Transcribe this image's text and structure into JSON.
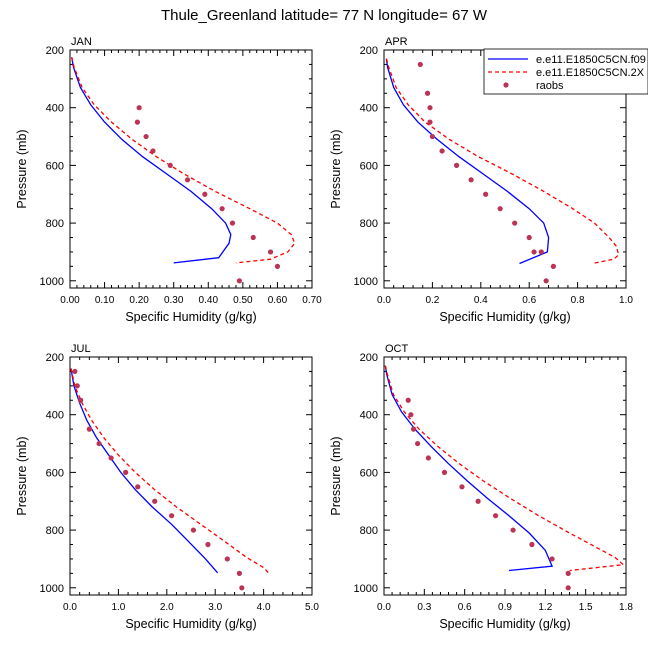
{
  "figure": {
    "title": "Thule_Greenland  latitude= 77 N longitude= 67 W"
  },
  "chart_data": [
    {
      "type": "line",
      "panel_label": "JAN",
      "xlabel": "Specific Humidity (g/kg)",
      "ylabel": "Pressure (mb)",
      "xlim": [
        0,
        0.7
      ],
      "xticks": [
        0,
        0.1,
        0.2,
        0.3,
        0.4,
        0.5,
        0.6,
        0.7
      ],
      "xtick_labels": [
        "0.00",
        "0.10",
        "0.20",
        "0.30",
        "0.40",
        "0.50",
        "0.60",
        "0.70"
      ],
      "ylim": [
        200,
        1025
      ],
      "yticks": [
        200,
        400,
        600,
        800,
        1000
      ],
      "yreversed": true,
      "legend": null,
      "series": [
        {
          "name": "e.e11.E1850C5CN.f09",
          "style": "solid",
          "color": "#0000ff",
          "x": [
            0.005,
            0.01,
            0.03,
            0.06,
            0.1,
            0.15,
            0.21,
            0.28,
            0.35,
            0.41,
            0.45,
            0.465,
            0.46,
            0.43,
            0.3
          ],
          "y": [
            225,
            260,
            330,
            390,
            450,
            510,
            570,
            630,
            690,
            750,
            800,
            840,
            870,
            920,
            938
          ]
        },
        {
          "name": "e.e11.E1850C5CN.2X",
          "style": "dashed",
          "color": "#ff0000",
          "x": [
            0.005,
            0.012,
            0.035,
            0.07,
            0.12,
            0.18,
            0.25,
            0.33,
            0.42,
            0.52,
            0.6,
            0.64,
            0.65,
            0.63,
            0.58,
            0.48
          ],
          "y": [
            225,
            260,
            330,
            390,
            450,
            510,
            570,
            630,
            690,
            750,
            800,
            840,
            870,
            900,
            925,
            938
          ]
        },
        {
          "name": "raobs",
          "style": "markers",
          "color": "#bb3355",
          "x": [
            0.2,
            0.195,
            0.22,
            0.24,
            0.29,
            0.34,
            0.39,
            0.44,
            0.47,
            0.53,
            0.58,
            0.6,
            0.49
          ],
          "y": [
            400,
            450,
            500,
            550,
            600,
            650,
            700,
            750,
            800,
            850,
            900,
            950,
            1000
          ]
        }
      ]
    },
    {
      "type": "line",
      "panel_label": "APR",
      "xlabel": "Specific Humidity (g/kg)",
      "ylabel": "Pressure (mb)",
      "xlim": [
        0,
        1.0
      ],
      "xticks": [
        0,
        0.2,
        0.4,
        0.6,
        0.8,
        1.0
      ],
      "xtick_labels": [
        "0.0",
        "0.2",
        "0.4",
        "0.6",
        "0.8",
        "1.0"
      ],
      "ylim": [
        200,
        1025
      ],
      "yticks": [
        200,
        400,
        600,
        800,
        1000
      ],
      "yreversed": true,
      "legend": "top-right",
      "series": [
        {
          "name": "e.e11.E1850C5CN.f09",
          "style": "solid",
          "color": "#0000ff",
          "x": [
            0.01,
            0.015,
            0.04,
            0.08,
            0.14,
            0.22,
            0.31,
            0.41,
            0.51,
            0.6,
            0.66,
            0.68,
            0.675,
            0.56
          ],
          "y": [
            230,
            260,
            330,
            390,
            450,
            510,
            570,
            630,
            690,
            750,
            800,
            850,
            900,
            940
          ]
        },
        {
          "name": "e.e11.E1850C5CN.2X",
          "style": "dashed",
          "color": "#ff0000",
          "x": [
            0.01,
            0.02,
            0.05,
            0.1,
            0.17,
            0.27,
            0.39,
            0.53,
            0.66,
            0.78,
            0.87,
            0.93,
            0.96,
            0.97,
            0.95,
            0.86
          ],
          "y": [
            230,
            260,
            330,
            390,
            450,
            510,
            570,
            630,
            690,
            750,
            800,
            850,
            880,
            910,
            925,
            940
          ]
        },
        {
          "name": "raobs",
          "style": "markers",
          "color": "#bb3355",
          "x": [
            0.15,
            0.18,
            0.19,
            0.19,
            0.2,
            0.24,
            0.3,
            0.36,
            0.42,
            0.48,
            0.54,
            0.6,
            0.62,
            0.65,
            0.7,
            0.67
          ],
          "y": [
            250,
            350,
            400,
            450,
            500,
            550,
            600,
            650,
            700,
            750,
            800,
            850,
            900,
            900,
            950,
            1000
          ]
        }
      ]
    },
    {
      "type": "line",
      "panel_label": "JUL",
      "xlabel": "Specific Humidity (g/kg)",
      "ylabel": "Pressure (mb)",
      "xlim": [
        0,
        5.0
      ],
      "xticks": [
        0,
        1,
        2,
        3,
        4,
        5
      ],
      "xtick_labels": [
        "0.0",
        "1.0",
        "2.0",
        "3.0",
        "4.0",
        "5.0"
      ],
      "ylim": [
        200,
        1025
      ],
      "yticks": [
        200,
        400,
        600,
        800,
        1000
      ],
      "yreversed": true,
      "legend": null,
      "series": [
        {
          "name": "e.e11.E1850C5CN.f09",
          "style": "solid",
          "color": "#0000ff",
          "x": [
            0.02,
            0.08,
            0.2,
            0.35,
            0.55,
            0.8,
            1.05,
            1.35,
            1.7,
            2.1,
            2.45,
            2.8,
            3.05
          ],
          "y": [
            240,
            300,
            360,
            420,
            480,
            540,
            600,
            660,
            720,
            780,
            840,
            900,
            948
          ]
        },
        {
          "name": "e.e11.E1850C5CN.2X",
          "style": "dashed",
          "color": "#ff0000",
          "x": [
            0.02,
            0.1,
            0.25,
            0.45,
            0.7,
            1.0,
            1.35,
            1.75,
            2.2,
            2.7,
            3.2,
            3.65,
            4.0,
            4.1
          ],
          "y": [
            240,
            300,
            360,
            420,
            480,
            540,
            600,
            660,
            720,
            780,
            840,
            895,
            930,
            948
          ]
        },
        {
          "name": "raobs",
          "style": "markers",
          "color": "#bb3355",
          "x": [
            0.1,
            0.15,
            0.22,
            0.4,
            0.6,
            0.85,
            1.15,
            1.4,
            1.75,
            2.1,
            2.55,
            2.85,
            3.25,
            3.5,
            3.55
          ],
          "y": [
            250,
            300,
            350,
            450,
            500,
            550,
            600,
            650,
            700,
            750,
            800,
            850,
            900,
            950,
            1000
          ]
        }
      ]
    },
    {
      "type": "line",
      "panel_label": "OCT",
      "xlabel": "Specific Humidity (g/kg)",
      "ylabel": "Pressure (mb)",
      "xlim": [
        0,
        1.8
      ],
      "xticks": [
        0,
        0.3,
        0.6,
        0.9,
        1.2,
        1.5,
        1.8
      ],
      "xtick_labels": [
        "0.0",
        "0.3",
        "0.6",
        "0.9",
        "1.2",
        "1.5",
        "1.8"
      ],
      "ylim": [
        200,
        1025
      ],
      "yticks": [
        200,
        400,
        600,
        800,
        1000
      ],
      "yreversed": true,
      "legend": null,
      "series": [
        {
          "name": "e.e11.E1850C5CN.f09",
          "style": "solid",
          "color": "#0000ff",
          "x": [
            0.01,
            0.02,
            0.06,
            0.13,
            0.23,
            0.35,
            0.48,
            0.62,
            0.77,
            0.93,
            1.08,
            1.2,
            1.25,
            0.93
          ],
          "y": [
            230,
            260,
            330,
            390,
            450,
            510,
            570,
            630,
            690,
            750,
            810,
            870,
            925,
            940
          ]
        },
        {
          "name": "e.e11.E1850C5CN.2X",
          "style": "dashed",
          "color": "#ff0000",
          "x": [
            0.01,
            0.025,
            0.07,
            0.15,
            0.26,
            0.4,
            0.56,
            0.74,
            0.94,
            1.15,
            1.38,
            1.58,
            1.72,
            1.78,
            1.38
          ],
          "y": [
            230,
            260,
            330,
            390,
            450,
            510,
            570,
            630,
            690,
            750,
            810,
            860,
            895,
            920,
            940
          ]
        },
        {
          "name": "raobs",
          "style": "markers",
          "color": "#bb3355",
          "x": [
            0.18,
            0.2,
            0.22,
            0.25,
            0.33,
            0.45,
            0.58,
            0.7,
            0.83,
            0.96,
            1.1,
            1.25,
            1.37,
            1.37
          ],
          "y": [
            350,
            400,
            450,
            500,
            550,
            600,
            650,
            700,
            750,
            800,
            850,
            900,
            950,
            1000
          ]
        }
      ]
    }
  ]
}
